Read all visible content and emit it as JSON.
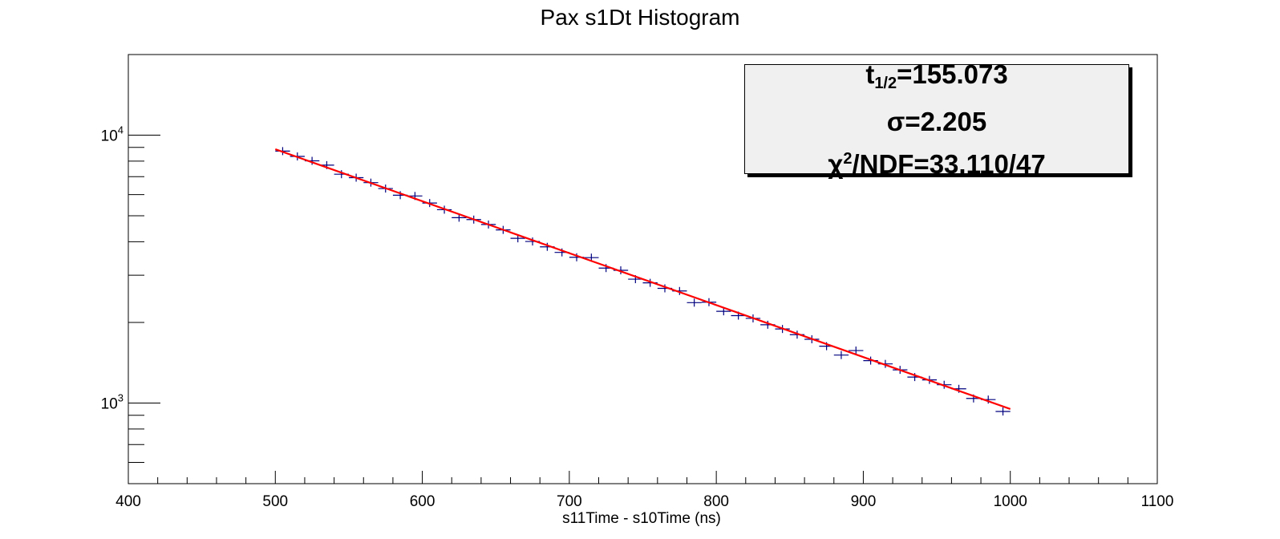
{
  "chart_data": {
    "type": "scatter",
    "title": "Pax s1Dt Histogram",
    "xlabel": "s11Time - s10Time (ns)",
    "ylabel": "",
    "xlim": [
      400,
      1100
    ],
    "ylim": [
      500,
      20000
    ],
    "yscale": "log",
    "x_ticks": [
      400,
      500,
      600,
      700,
      800,
      900,
      1000,
      1100
    ],
    "y_ticks": [
      {
        "base": "10",
        "exp": "3",
        "value": 1000
      },
      {
        "base": "10",
        "exp": "4",
        "value": 10000
      }
    ],
    "grid": false,
    "bin_width": 10,
    "series": [
      {
        "style": "markers-with-bin-errors",
        "color": "#00007f",
        "x": [
          505,
          515,
          525,
          535,
          545,
          555,
          565,
          575,
          585,
          595,
          605,
          615,
          625,
          635,
          645,
          655,
          665,
          675,
          685,
          695,
          705,
          715,
          725,
          735,
          745,
          755,
          765,
          775,
          785,
          795,
          805,
          815,
          825,
          835,
          845,
          855,
          865,
          875,
          885,
          895,
          905,
          915,
          925,
          935,
          945,
          955,
          965,
          975,
          985,
          995
        ],
        "y": [
          8720,
          8330,
          8020,
          7730,
          7150,
          6940,
          6650,
          6320,
          5970,
          5930,
          5580,
          5270,
          4920,
          4840,
          4640,
          4430,
          4120,
          4010,
          3830,
          3650,
          3500,
          3490,
          3190,
          3130,
          2900,
          2810,
          2680,
          2620,
          2370,
          2380,
          2200,
          2120,
          2070,
          1960,
          1890,
          1800,
          1730,
          1630,
          1510,
          1570,
          1440,
          1400,
          1330,
          1250,
          1220,
          1170,
          1130,
          1040,
          1030,
          930
        ]
      },
      {
        "style": "fit-line",
        "color": "#ff0000",
        "x": [
          500,
          1000
        ],
        "y": [
          8860,
          950
        ]
      }
    ],
    "stats": {
      "halflife_prefix": "t",
      "halflife_sub": "1/2",
      "halflife_value": "=155.073",
      "sigma": "σ=2.205",
      "chi_prefix": "χ",
      "chi_sup": "2",
      "chi_value": "/NDF=33.110/47"
    }
  },
  "colors": {
    "data": "#00007f",
    "fit": "#ff0000",
    "stats_background": "#f0f0f0"
  }
}
